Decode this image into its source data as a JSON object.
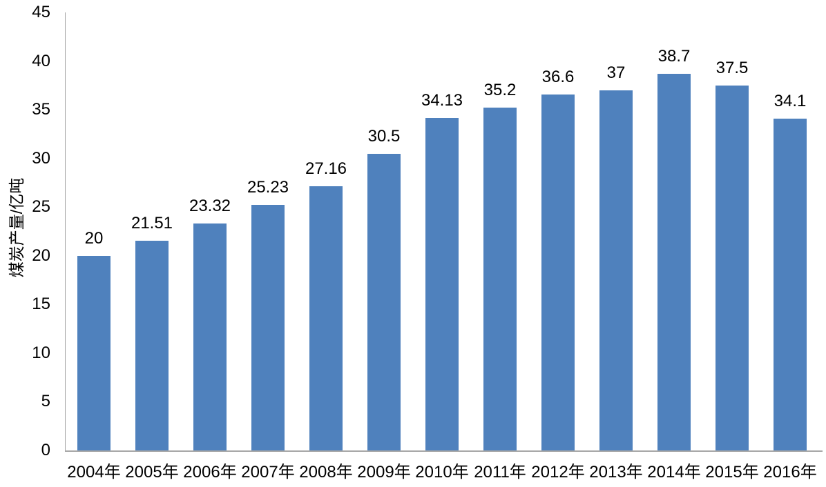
{
  "chart_data": {
    "type": "bar",
    "title": "",
    "xlabel": "",
    "ylabel": "煤炭产量/亿吨",
    "categories": [
      "2004年",
      "2005年",
      "2006年",
      "2007年",
      "2008年",
      "2009年",
      "2010年",
      "2011年",
      "2012年",
      "2013年",
      "2014年",
      "2015年",
      "2016年"
    ],
    "values": [
      20,
      21.51,
      23.32,
      25.23,
      27.16,
      30.5,
      34.13,
      35.2,
      36.6,
      37,
      38.7,
      37.5,
      34.1
    ],
    "data_labels": [
      "20",
      "21.51",
      "23.32",
      "25.23",
      "27.16",
      "30.5",
      "34.13",
      "35.2",
      "36.6",
      "37",
      "38.7",
      "37.5",
      "34.1"
    ],
    "ylim": [
      0,
      45
    ],
    "yticks": [
      45,
      40,
      35,
      30,
      25,
      20,
      15,
      10,
      5,
      0
    ],
    "grid": false,
    "legend": "none",
    "bar_color": "#4F81BD",
    "axis_color": "#A6A6A6",
    "text_color": "#000000"
  }
}
